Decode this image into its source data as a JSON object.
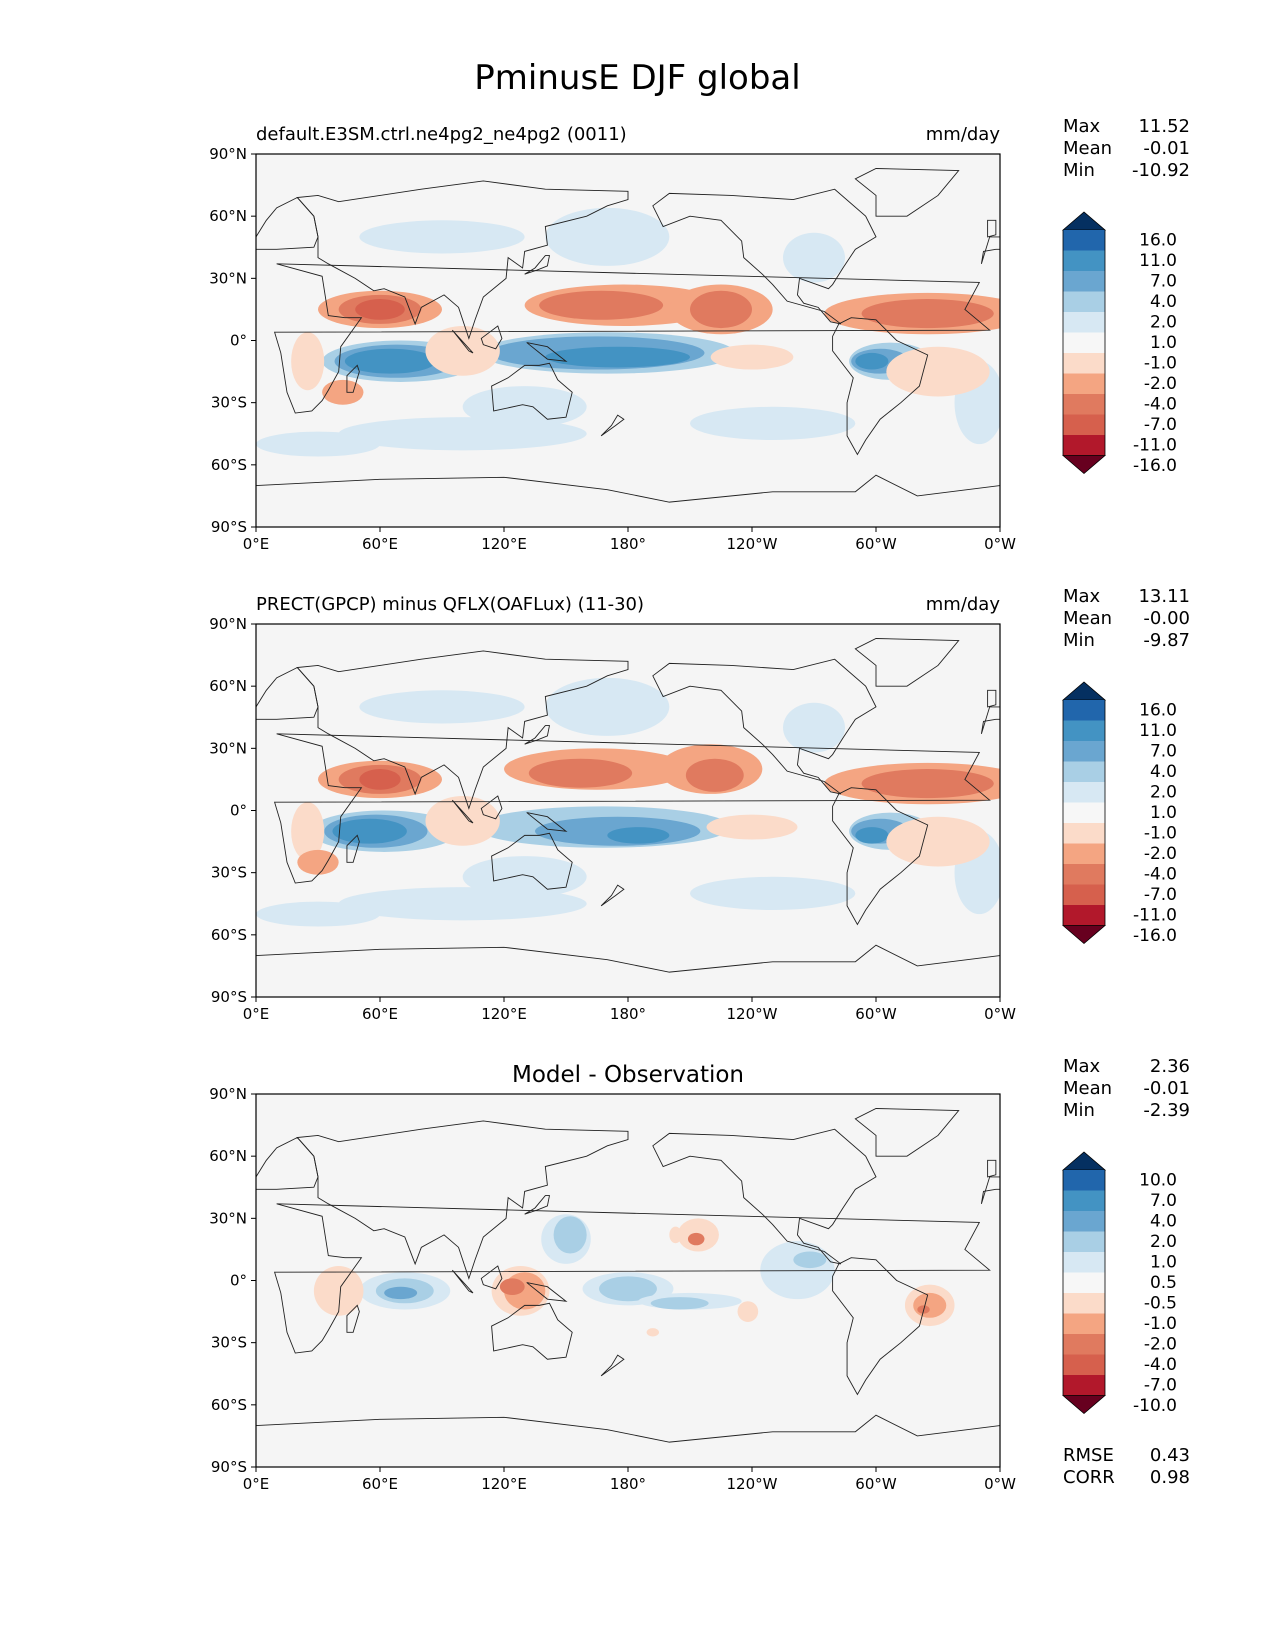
{
  "title": "PminusE DJF global",
  "axes": {
    "lat_ticks": [
      "90°N",
      "60°N",
      "30°N",
      "0°",
      "30°S",
      "60°S",
      "90°S"
    ],
    "lon_ticks": [
      "0°E",
      "60°E",
      "120°E",
      "180°",
      "120°W",
      "60°W",
      "0°W"
    ]
  },
  "panels": [
    {
      "title_left": "default.E3SM.ctrl.ne4pg2_ne4pg2 (0011)",
      "title_center": "",
      "units": "mm/day",
      "stats": {
        "max_label": "Max",
        "max": "11.52",
        "mean_label": "Mean",
        "mean": "-0.01",
        "min_label": "Min",
        "min": "-10.92"
      },
      "colorbar_labels": [
        "16.0",
        "11.0",
        "7.0",
        "4.0",
        "2.0",
        "1.0",
        "-1.0",
        "-2.0",
        "-4.0",
        "-7.0",
        "-11.0",
        "-16.0"
      ]
    },
    {
      "title_left": "PRECT(GPCP) minus QFLX(OAFLux) (11-30)",
      "title_center": "",
      "units": "mm/day",
      "stats": {
        "max_label": "Max",
        "max": "13.11",
        "mean_label": "Mean",
        "mean": "-0.00",
        "min_label": "Min",
        "min": "-9.87"
      },
      "colorbar_labels": [
        "16.0",
        "11.0",
        "7.0",
        "4.0",
        "2.0",
        "1.0",
        "-1.0",
        "-2.0",
        "-4.0",
        "-7.0",
        "-11.0",
        "-16.0"
      ]
    },
    {
      "title_left": "",
      "title_center": "Model - Observation",
      "units": "",
      "stats": {
        "max_label": "Max",
        "max": "2.36",
        "mean_label": "Mean",
        "mean": "-0.01",
        "min_label": "Min",
        "min": "-2.39"
      },
      "colorbar_labels": [
        "10.0",
        "7.0",
        "4.0",
        "2.0",
        "1.0",
        "0.5",
        "-0.5",
        "-1.0",
        "-2.0",
        "-4.0",
        "-7.0",
        "-10.0"
      ],
      "rmse_label": "RMSE",
      "rmse": "0.43",
      "corr_label": "CORR",
      "corr": "0.98"
    }
  ],
  "colors": {
    "colorbar": [
      "#053061",
      "#2166ac",
      "#4393c3",
      "#6aa6d0",
      "#a9cfe5",
      "#d7e8f3",
      "#f7f7f7",
      "#fbdbc9",
      "#f4a582",
      "#e07a5f",
      "#d6604d",
      "#b2182b",
      "#67001f"
    ],
    "map_background": "#f5f5f5"
  }
}
